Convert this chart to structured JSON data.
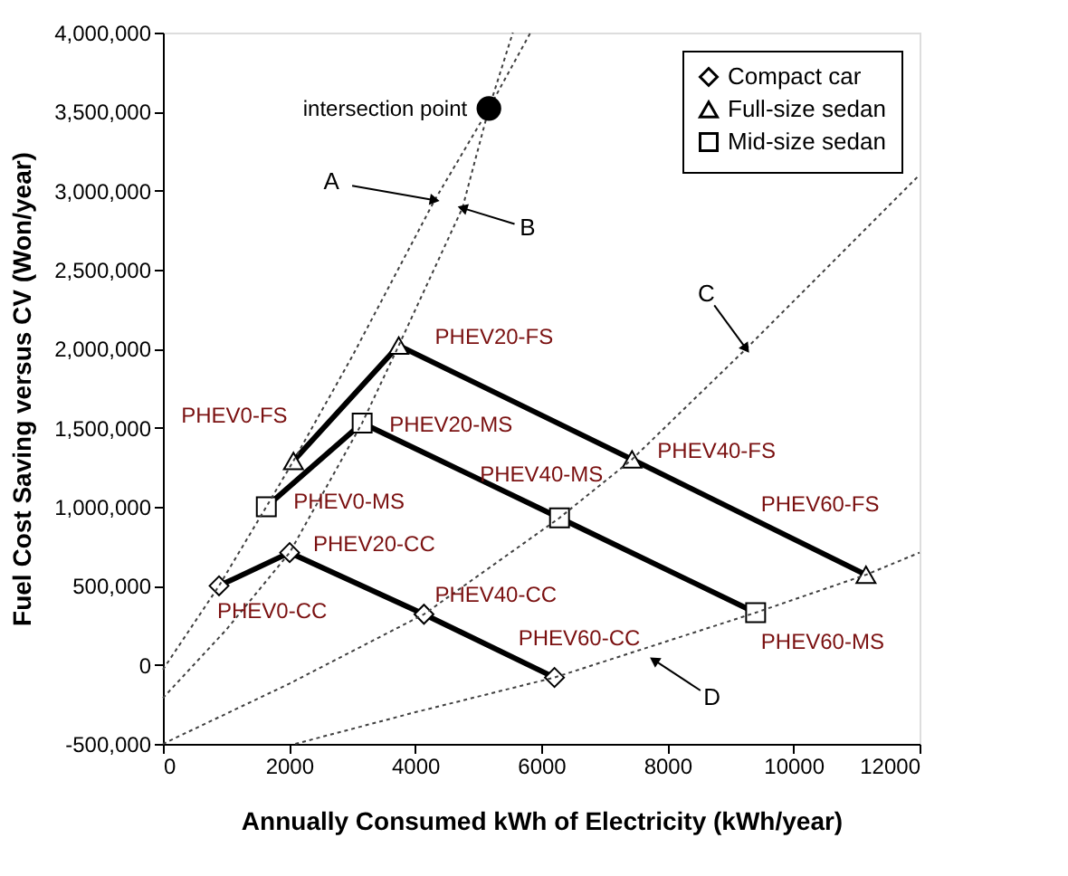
{
  "chart_data": {
    "type": "line",
    "xlabel": "Annually  Consumed kWh of Electricity (kWh/year)",
    "ylabel": "Fuel Cost Saving versus CV (Won/year)",
    "xlim": [
      0,
      12000
    ],
    "xticks": [
      0,
      2000,
      4000,
      6000,
      8000,
      10000,
      12000
    ],
    "ylim": [
      -500000,
      4000000
    ],
    "yticks": [
      {
        "value": -500000,
        "label": "-500,000"
      },
      0,
      {
        "value": 500000,
        "label": "500,000"
      },
      {
        "value": 1000000,
        "label": "1,000,000"
      },
      {
        "value": 1500000,
        "label": "1,500,000"
      },
      {
        "value": 2000000,
        "label": "2,000,000"
      },
      {
        "value": 2500000,
        "label": "2,500,000"
      },
      {
        "value": 3000000,
        "label": "3,000,000"
      },
      {
        "value": 3500000,
        "label": "3,500,000"
      },
      {
        "value": 4000000,
        "label": "4,000,000"
      }
    ],
    "grid": false,
    "legend": "top right",
    "series": [
      {
        "name": "Compact car",
        "color": "#000000",
        "marker": "diamond",
        "line_style": "solid",
        "x": [
          890,
          2010,
          4140,
          6210
        ],
        "values": [
          500000,
          710000,
          320000,
          -80000
        ]
      },
      {
        "name": "Full-size sedan",
        "color": "#000000",
        "marker": "triangle",
        "line_style": "solid",
        "x": [
          2070,
          3740,
          7440,
          11150
        ],
        "values": [
          1290000,
          2020000,
          1300000,
          570000
        ]
      },
      {
        "name": "Mid-size sedan",
        "color": "#000000",
        "marker": "square",
        "line_style": "solid",
        "x": [
          1640,
          3160,
          6290,
          9400
        ],
        "values": [
          1000000,
          1530000,
          930000,
          330000
        ]
      },
      {
        "color": "#404040",
        "marker": "none",
        "line_style": "dotted",
        "x": [
          0,
          890,
          1640,
          2070,
          3000,
          4310,
          5170,
          5830
        ],
        "values": [
          -30000,
          500000,
          1000000,
          1290000,
          1950000,
          2940000,
          3520000,
          4000000
        ]
      },
      {
        "color": "#404040",
        "marker": "none",
        "line_style": "dotted",
        "x": [
          0,
          1000,
          2010,
          3160,
          3740,
          4750,
          5170,
          5550
        ],
        "values": [
          -210000,
          220000,
          710000,
          1530000,
          2020000,
          2890000,
          3520000,
          4000000
        ]
      },
      {
        "color": "#404040",
        "marker": "none",
        "line_style": "dotted",
        "x": [
          0,
          2000,
          4140,
          6290,
          7440,
          9250,
          12000
        ],
        "values": [
          -500000,
          -120000,
          320000,
          930000,
          1300000,
          2000000,
          3100000
        ]
      },
      {
        "color": "#404040",
        "marker": "none",
        "line_style": "dotted",
        "x": [
          2100,
          4000,
          6210,
          9400,
          11150,
          12000
        ],
        "values": [
          -500000,
          -300000,
          -80000,
          330000,
          570000,
          710000
        ]
      },
      {
        "type": "scatter",
        "color": "#000000",
        "marker": "circle",
        "x": [
          5170
        ],
        "values": [
          3520000
        ]
      }
    ],
    "annotations": [
      {
        "text": "PHEV0-CC",
        "x": 890,
        "y": 500000
      },
      {
        "text": "PHEV20-CC",
        "x": 2010,
        "y": 710000
      },
      {
        "text": "PHEV40-CC",
        "x": 4140,
        "y": 320000
      },
      {
        "text": "PHEV60-CC",
        "x": 6210,
        "y": -80000
      },
      {
        "text": "PHEV0-FS",
        "x": 2070,
        "y": 1290000
      },
      {
        "text": "PHEV20-FS",
        "x": 3740,
        "y": 2020000
      },
      {
        "text": "PHEV40-FS",
        "x": 7440,
        "y": 1300000
      },
      {
        "text": "PHEV60-FS",
        "x": 11150,
        "y": 570000
      },
      {
        "text": "PHEV0-MS",
        "x": 1640,
        "y": 1000000
      },
      {
        "text": "PHEV20-MS",
        "x": 3160,
        "y": 1530000
      },
      {
        "text": "PHEV40-MS",
        "x": 6290,
        "y": 930000
      },
      {
        "text": "PHEV60-MS",
        "x": 9400,
        "y": 330000
      },
      {
        "text": "intersection point",
        "x": 5170,
        "y": 3520000
      },
      {
        "text": "A",
        "x": 4310,
        "y": 2940000
      },
      {
        "text": "B",
        "x": 4750,
        "y": 2890000
      },
      {
        "text": "C",
        "x": 9250,
        "y": 2000000
      },
      {
        "text": "D",
        "x": 7790,
        "y": 30000
      }
    ]
  }
}
